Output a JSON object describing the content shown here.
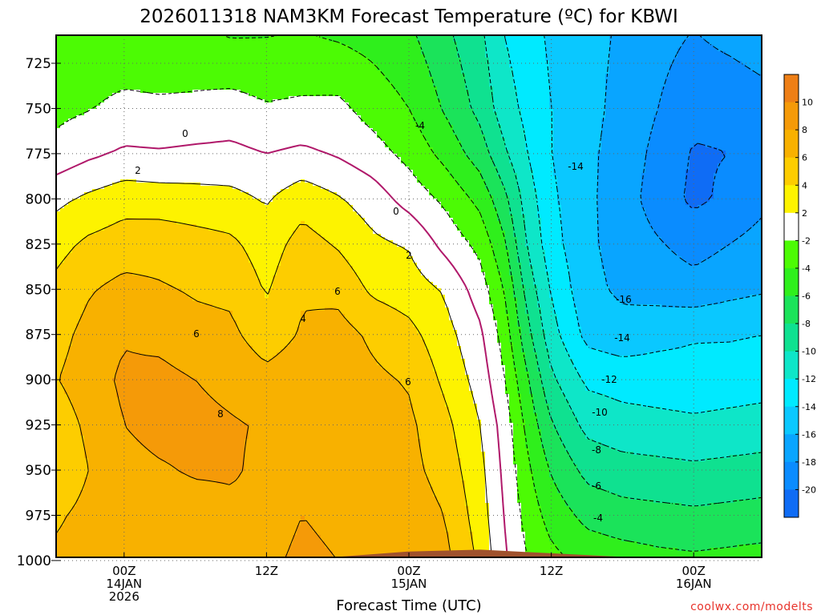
{
  "chart_data": {
    "type": "contour",
    "title": "2026011318 NAM3KM Forecast Temperature (ºC) for KBWI",
    "xlabel": "Forecast Time (UTC)",
    "ylabel": "",
    "credit": "coolwx.com/modelts",
    "x_ticks": [
      {
        "hour": 6,
        "lines": [
          "00Z",
          "14JAN",
          "2026"
        ]
      },
      {
        "hour": 18,
        "lines": [
          "12Z"
        ]
      },
      {
        "hour": 30,
        "lines": [
          "00Z",
          "15JAN"
        ]
      },
      {
        "hour": 42,
        "lines": [
          "12Z"
        ]
      },
      {
        "hour": 54,
        "lines": [
          "00Z",
          "16JAN"
        ]
      }
    ],
    "xlim": [
      0,
      60
    ],
    "y_ticks": [
      "725",
      "750",
      "775",
      "800",
      "825",
      "850",
      "875",
      "900",
      "925",
      "950",
      "975",
      "1000"
    ],
    "ylim": [
      712,
      1013
    ],
    "colorbar": {
      "labels": [
        "10",
        "8",
        "6",
        "4",
        "2",
        "-2",
        "-4",
        "-6",
        "-8",
        "-10",
        "-12",
        "-14",
        "-16",
        "-18",
        "-20"
      ],
      "colors": [
        "#ee7f16",
        "#f59a08",
        "#f8b100",
        "#fdcd00",
        "#fdf300",
        "#ffffff",
        "#4cfb04",
        "#2fef1c",
        "#1be35a",
        "#0fe190",
        "#0ee6c8",
        "#00eaff",
        "#0ac8ff",
        "#09a5ff",
        "#0a8cff",
        "#0f6cf5"
      ]
    },
    "contour_labels": [
      "0",
      "2",
      "-4",
      "-14",
      "0",
      "2",
      "6",
      "4",
      "6",
      "8",
      "6",
      "-16",
      "-14",
      "-12",
      "-10",
      "-8",
      "-6",
      "-4"
    ],
    "columns": [
      {
        "hour": 0,
        "T": [
          -3.4,
          -2.6,
          -1.4,
          1.4,
          3.2,
          4.4,
          5.2,
          5.8,
          4.8,
          4.2,
          5.6,
          6.4
        ]
      },
      {
        "hour": 3,
        "T": [
          -3.0,
          -2.1,
          -0.4,
          2.4,
          4.4,
          5.8,
          6.6,
          7.0,
          6.4,
          6.0,
          6.6,
          7.0
        ]
      },
      {
        "hour": 6,
        "T": [
          -2.8,
          -1.4,
          0.3,
          3.2,
          5.0,
          6.6,
          7.8,
          8.4,
          8.0,
          7.4,
          7.4,
          7.5
        ]
      },
      {
        "hour": 9,
        "T": [
          -2.9,
          -1.6,
          0.2,
          3.0,
          5.2,
          6.2,
          7.4,
          8.6,
          8.6,
          7.8,
          7.0,
          7.0
        ]
      },
      {
        "hour": 12,
        "T": [
          -2.8,
          -1.5,
          0.4,
          2.8,
          4.8,
          5.8,
          6.6,
          8.0,
          8.6,
          8.2,
          7.2,
          7.2
        ]
      },
      {
        "hour": 15,
        "T": [
          -3.0,
          -1.2,
          0.5,
          2.6,
          4.4,
          5.6,
          6.4,
          7.4,
          8.2,
          8.2,
          7.6,
          7.8
        ]
      },
      {
        "hour": 18,
        "T": [
          -3.2,
          -1.8,
          0.0,
          1.8,
          3.0,
          3.8,
          5.0,
          6.6,
          7.8,
          7.6,
          7.6,
          7.8
        ]
      },
      {
        "hour": 21,
        "T": [
          -3.0,
          -1.6,
          0.4,
          3.2,
          4.8,
          5.8,
          6.2,
          7.2,
          8.0,
          7.8,
          8.0,
          8.2
        ]
      },
      {
        "hour": 24,
        "T": [
          -3.2,
          -1.5,
          -0.2,
          2.2,
          3.8,
          5.4,
          6.8,
          7.2,
          7.6,
          7.6,
          7.8,
          8.0
        ]
      },
      {
        "hour": 27,
        "T": [
          -4.0,
          -2.8,
          -1.2,
          1.0,
          2.4,
          3.6,
          5.6,
          6.4,
          7.2,
          7.4,
          7.6,
          7.8
        ]
      },
      {
        "hour": 30,
        "T": [
          -5.0,
          -4.0,
          -2.6,
          -0.8,
          1.8,
          3.0,
          4.6,
          5.8,
          6.4,
          6.6,
          7.2,
          7.6
        ]
      },
      {
        "hour": 33,
        "T": [
          -7.0,
          -6.2,
          -4.6,
          -2.4,
          -0.6,
          1.8,
          2.8,
          3.6,
          4.6,
          5.2,
          6.0,
          6.6
        ]
      },
      {
        "hour": 36,
        "T": [
          -9.2,
          -8.6,
          -7.0,
          -4.6,
          -2.6,
          -1.0,
          0.4,
          1.2,
          2.0,
          2.6,
          3.0,
          3.6
        ]
      },
      {
        "hour": 38,
        "T": [
          -11.6,
          -11.0,
          -9.6,
          -7.4,
          -5.6,
          -4.0,
          -2.8,
          -1.8,
          -0.8,
          -0.4,
          0.0,
          0.4
        ]
      },
      {
        "hour": 40,
        "T": [
          -13.0,
          -12.6,
          -12.0,
          -11.0,
          -10.2,
          -8.8,
          -7.4,
          -5.8,
          -4.6,
          -3.6,
          -2.8,
          -2.0
        ]
      },
      {
        "hour": 42,
        "T": [
          -14.2,
          -14.0,
          -14.0,
          -13.6,
          -13.2,
          -12.2,
          -11.2,
          -9.6,
          -7.8,
          -6.2,
          -4.8,
          -3.4
        ]
      },
      {
        "hour": 45,
        "T": [
          -15.4,
          -15.4,
          -15.6,
          -15.6,
          -15.6,
          -15.4,
          -14.6,
          -12.4,
          -10.6,
          -8.6,
          -6.6,
          -4.6
        ]
      },
      {
        "hour": 48,
        "T": [
          -16.4,
          -16.6,
          -16.8,
          -17.0,
          -16.8,
          -16.4,
          -15.2,
          -12.8,
          -11.2,
          -9.2,
          -7.2,
          -5.0
        ]
      },
      {
        "hour": 51,
        "T": [
          -17.6,
          -18.0,
          -18.6,
          -19.0,
          -17.8,
          -16.8,
          -14.6,
          -13.0,
          -11.4,
          -9.4,
          -7.4,
          -5.4
        ]
      },
      {
        "hour": 54,
        "T": [
          -18.6,
          -19.4,
          -20.2,
          -20.4,
          -18.8,
          -17.2,
          -14.2,
          -13.2,
          -11.6,
          -9.6,
          -7.6,
          -5.6
        ]
      },
      {
        "hour": 57,
        "T": [
          -18.2,
          -19.4,
          -20.0,
          -19.6,
          -18.0,
          -16.6,
          -14.2,
          -13.0,
          -11.4,
          -9.4,
          -7.4,
          -5.4
        ]
      },
      {
        "hour": 60,
        "T": [
          -17.6,
          -18.8,
          -19.2,
          -18.4,
          -17.2,
          -16.2,
          -14.0,
          -12.8,
          -11.2,
          -9.2,
          -7.2,
          -5.2
        ]
      }
    ],
    "surface_pressure": [
      {
        "hour": 0,
        "p": 1006
      },
      {
        "hour": 6,
        "p": 1002
      },
      {
        "hour": 12,
        "p": 1000
      },
      {
        "hour": 18,
        "p": 999
      },
      {
        "hour": 24,
        "p": 998
      },
      {
        "hour": 30,
        "p": 995
      },
      {
        "hour": 36,
        "p": 994
      },
      {
        "hour": 42,
        "p": 996
      },
      {
        "hour": 48,
        "p": 998
      },
      {
        "hour": 54,
        "p": 1000
      },
      {
        "hour": 60,
        "p": 999
      }
    ]
  }
}
